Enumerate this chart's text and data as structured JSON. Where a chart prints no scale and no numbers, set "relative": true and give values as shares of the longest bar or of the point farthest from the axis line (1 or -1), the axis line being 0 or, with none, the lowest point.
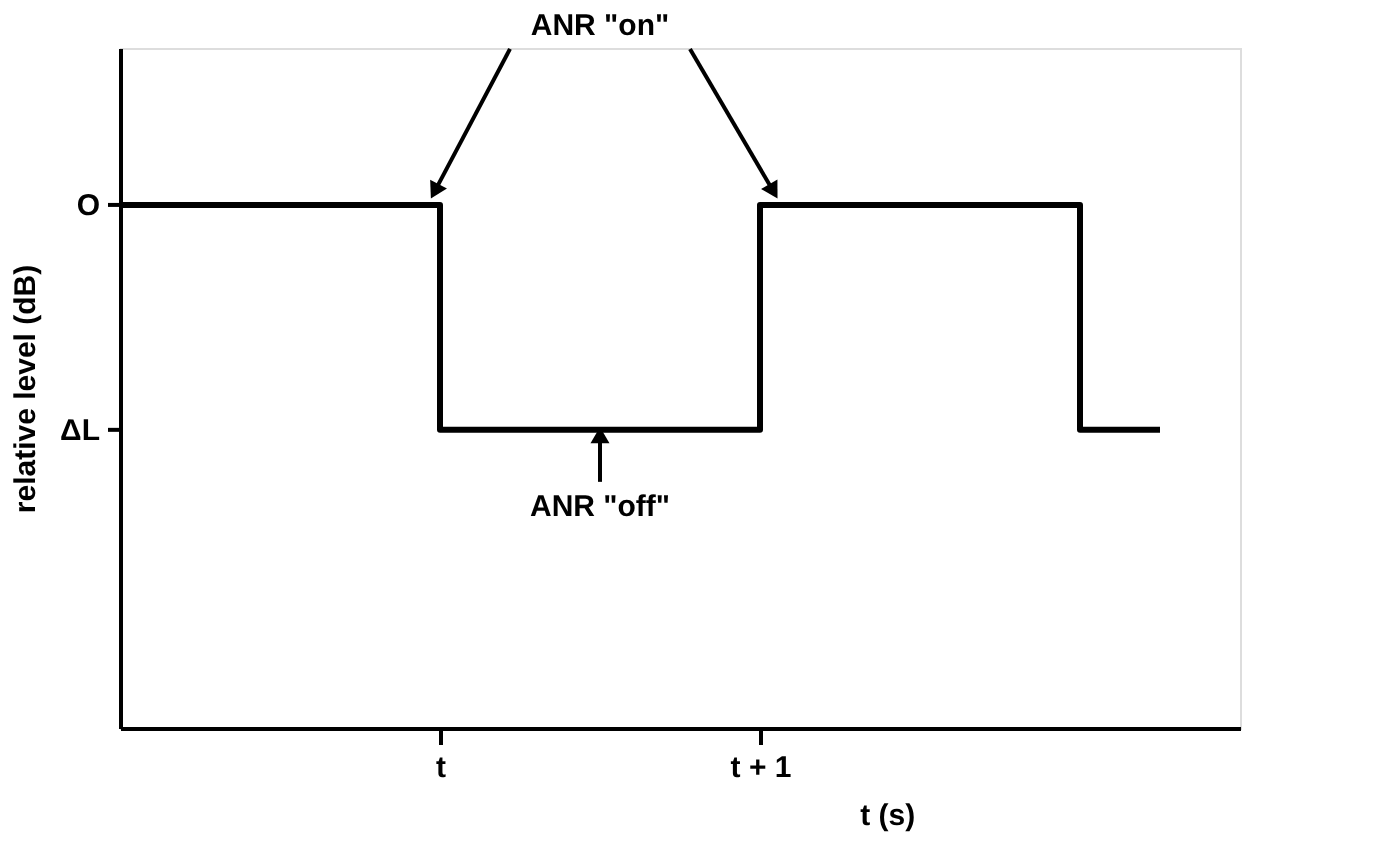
{
  "chart_data": {
    "type": "step",
    "color": "#000000",
    "ylabel": "relative level (dB)",
    "xlabel": "t (s)",
    "relative": true,
    "categories": [
      null,
      null,
      null,
      null,
      "t",
      null,
      null,
      null,
      "t + 1",
      null,
      null,
      null,
      null,
      null,
      null
    ],
    "values": [
      1,
      1,
      1,
      1,
      0.57,
      0.57,
      0.57,
      0.57,
      1,
      1,
      1,
      1,
      0.57,
      0.57,
      null
    ],
    "annotations": [
      {
        "text": "ANR \"off\"",
        "y": 0.57
      },
      "ANR \"on\"",
      "O",
      "ΔL"
    ],
    "grid": false
  }
}
